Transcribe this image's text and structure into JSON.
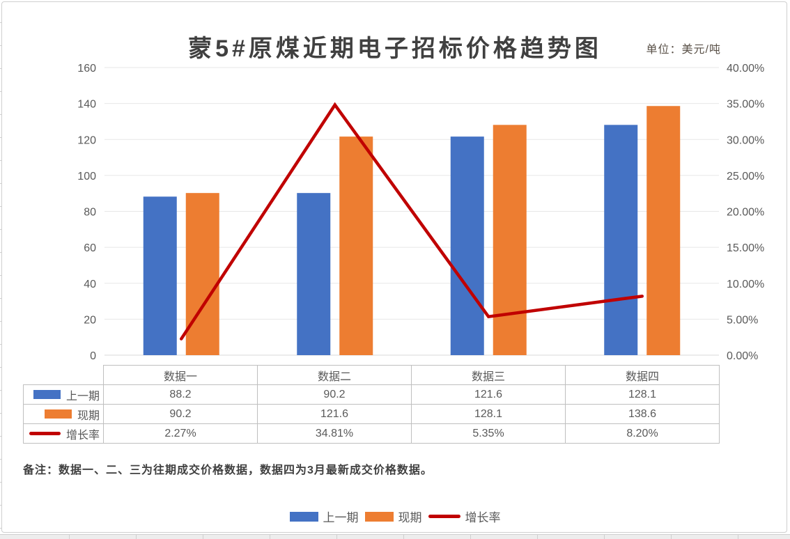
{
  "title": "蒙5#原煤近期电子招标价格趋势图",
  "unit_label": "单位：美元/吨",
  "note": "备注：数据一、二、三为往期成交价格数据，数据四为3月最新成交价格数据。",
  "colors": {
    "series_previous": "#4472C4",
    "series_current": "#ED7D31",
    "series_growth": "#C00000",
    "gridline": "#E7E7E7",
    "axis_text": "#595959",
    "table_border": "#BFBFBF",
    "title_text": "#404040"
  },
  "chart_data": {
    "type": "combo-bar-line",
    "title": "蒙5#原煤近期电子招标价格趋势图",
    "unit": "美元/吨",
    "categories": [
      "数据一",
      "数据二",
      "数据三",
      "数据四"
    ],
    "series": [
      {
        "name": "上一期",
        "type": "bar",
        "axis": "left",
        "color": "#4472C4",
        "values": [
          88.2,
          90.2,
          121.6,
          128.1
        ]
      },
      {
        "name": "现期",
        "type": "bar",
        "axis": "left",
        "color": "#ED7D31",
        "values": [
          90.2,
          121.6,
          128.1,
          138.6
        ]
      },
      {
        "name": "增长率",
        "type": "line",
        "axis": "right",
        "color": "#C00000",
        "values_percent": [
          2.27,
          34.81,
          5.35,
          8.2
        ],
        "labels": [
          "2.27%",
          "34.81%",
          "5.35%",
          "8.20%"
        ]
      }
    ],
    "left_axis": {
      "min": 0,
      "max": 160,
      "step": 20,
      "ticks": [
        "0",
        "20",
        "40",
        "60",
        "80",
        "100",
        "120",
        "140",
        "160"
      ]
    },
    "right_axis": {
      "min": 0,
      "max": 40,
      "step": 5,
      "ticks": [
        "0.00%",
        "5.00%",
        "10.00%",
        "15.00%",
        "20.00%",
        "25.00%",
        "30.00%",
        "35.00%",
        "40.00%"
      ]
    },
    "grid": true,
    "legend_position": "bottom",
    "data_table_shown": true
  },
  "table": {
    "header": [
      "数据一",
      "数据二",
      "数据三",
      "数据四"
    ],
    "rows": [
      {
        "label": "上一期",
        "swatch": "bar",
        "color": "#4472C4",
        "values": [
          "88.2",
          "90.2",
          "121.6",
          "128.1"
        ]
      },
      {
        "label": "现期",
        "swatch": "bar",
        "color": "#ED7D31",
        "values": [
          "90.2",
          "121.6",
          "128.1",
          "138.6"
        ]
      },
      {
        "label": "增长率",
        "swatch": "line",
        "color": "#C00000",
        "values": [
          "2.27%",
          "34.81%",
          "5.35%",
          "8.20%"
        ]
      }
    ]
  },
  "legend": {
    "items": [
      {
        "label": "上一期",
        "swatch": "bar",
        "color": "#4472C4"
      },
      {
        "label": "现期",
        "swatch": "bar",
        "color": "#ED7D31"
      },
      {
        "label": "增长率",
        "swatch": "line",
        "color": "#C00000"
      }
    ]
  }
}
